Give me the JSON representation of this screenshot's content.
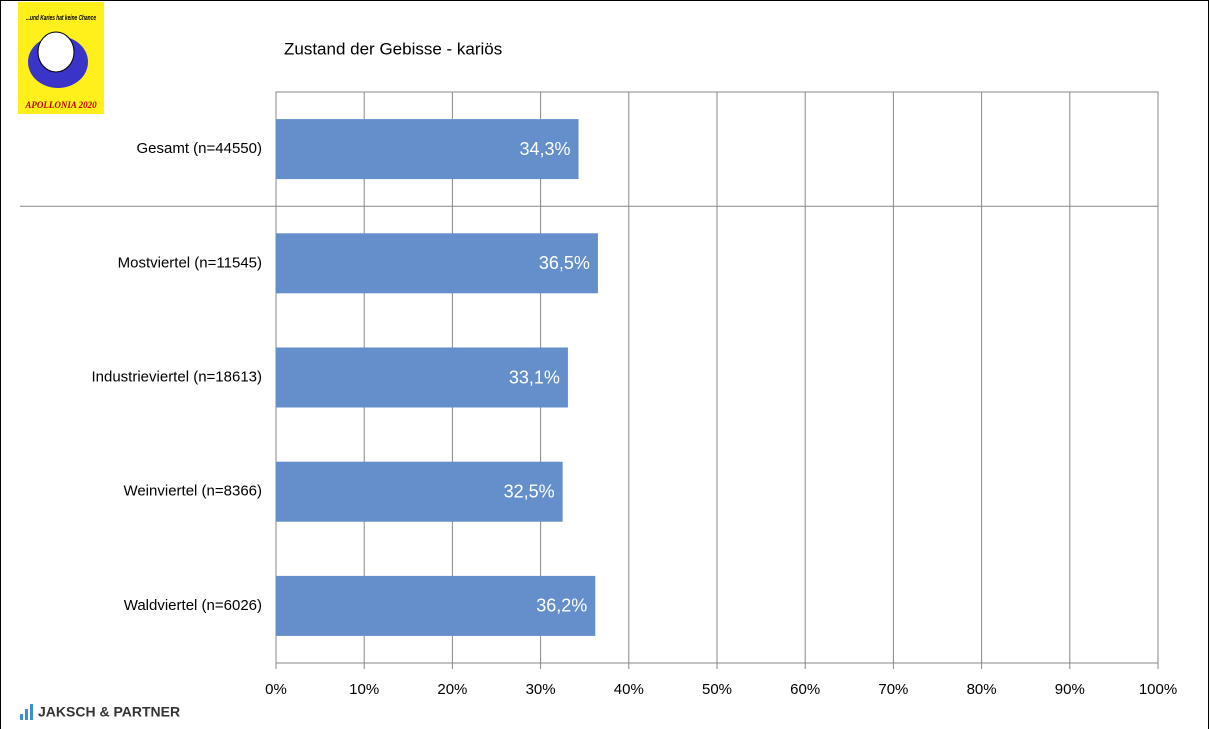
{
  "logo": {
    "slogan": "...und Karies hat keine Chance",
    "name": "APOLLONIA 2020"
  },
  "footer": "JAKSCH & PARTNER",
  "chart_data": {
    "type": "hbar",
    "title": "Zustand der Gebisse - kariös",
    "categories": [
      "Gesamt (n=44550)",
      "Mostviertel (n=11545)",
      "Industrieviertel (n=18613)",
      "Weinviertel (n=8366)",
      "Waldviertel (n=6026)"
    ],
    "values": [
      34.3,
      36.5,
      33.1,
      32.5,
      36.2
    ],
    "value_labels": [
      "34,3%",
      "36,5%",
      "33,1%",
      "32,5%",
      "36,2%"
    ],
    "color": "#658fcb",
    "xlim": [
      0,
      100
    ],
    "xticks": [
      {
        "value": 0,
        "label": "0%"
      },
      {
        "value": 10,
        "label": "10%"
      },
      {
        "value": 20,
        "label": "20%"
      },
      {
        "value": 30,
        "label": "30%"
      },
      {
        "value": 40,
        "label": "40%"
      },
      {
        "value": 50,
        "label": "50%"
      },
      {
        "value": 60,
        "label": "60%"
      },
      {
        "value": 70,
        "label": "70%"
      },
      {
        "value": 80,
        "label": "80%"
      },
      {
        "value": 90,
        "label": "90%"
      },
      {
        "value": 100,
        "label": "100%"
      }
    ],
    "grid": true
  }
}
